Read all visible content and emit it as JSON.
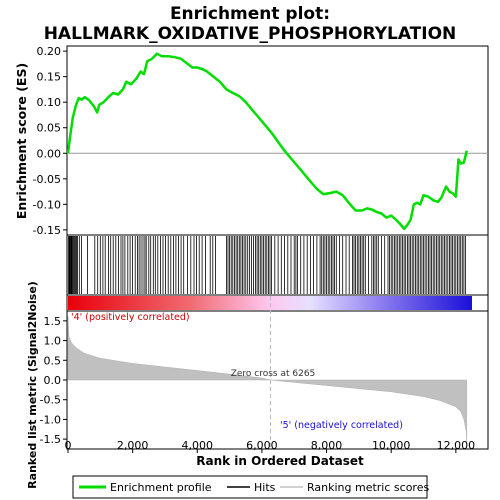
{
  "chart_data": {
    "type": "line",
    "title_line1": "Enrichment plot:",
    "title_line2": "HALLMARK_OXIDATIVE_PHOSPHORYLATION",
    "xlabel": "Rank in Ordered Dataset",
    "xlim": [
      0,
      12500
    ],
    "x_ticks": [
      0,
      2000,
      4000,
      6000,
      8000,
      10000,
      12000
    ],
    "x_tick_labels": [
      "0",
      "2,000",
      "4,000",
      "6,000",
      "8,000",
      "10,000",
      "12,000"
    ],
    "panels": {
      "es": {
        "ylabel": "Enrichment score (ES)",
        "ylim": [
          -0.16,
          0.21
        ],
        "y_ticks": [
          -0.15,
          -0.1,
          -0.05,
          0.0,
          0.05,
          0.1,
          0.15,
          0.2
        ],
        "y_tick_labels": [
          "-0.15",
          "-0.10",
          "-0.05",
          "0.00",
          "0.05",
          "0.10",
          "0.15",
          "0.20"
        ],
        "series_color": "#00dd00",
        "points": [
          [
            0,
            0.0
          ],
          [
            60,
            0.03
          ],
          [
            150,
            0.07
          ],
          [
            250,
            0.095
          ],
          [
            330,
            0.108
          ],
          [
            420,
            0.105
          ],
          [
            520,
            0.11
          ],
          [
            650,
            0.104
          ],
          [
            800,
            0.092
          ],
          [
            900,
            0.08
          ],
          [
            970,
            0.095
          ],
          [
            1100,
            0.1
          ],
          [
            1250,
            0.11
          ],
          [
            1400,
            0.118
          ],
          [
            1550,
            0.115
          ],
          [
            1700,
            0.125
          ],
          [
            1800,
            0.14
          ],
          [
            1950,
            0.135
          ],
          [
            2100,
            0.145
          ],
          [
            2250,
            0.16
          ],
          [
            2350,
            0.155
          ],
          [
            2450,
            0.18
          ],
          [
            2600,
            0.185
          ],
          [
            2750,
            0.195
          ],
          [
            2900,
            0.19
          ],
          [
            3100,
            0.19
          ],
          [
            3300,
            0.188
          ],
          [
            3500,
            0.185
          ],
          [
            3700,
            0.175
          ],
          [
            3850,
            0.168
          ],
          [
            4000,
            0.168
          ],
          [
            4150,
            0.165
          ],
          [
            4300,
            0.16
          ],
          [
            4500,
            0.15
          ],
          [
            4700,
            0.14
          ],
          [
            4900,
            0.125
          ],
          [
            5100,
            0.118
          ],
          [
            5300,
            0.112
          ],
          [
            5500,
            0.1
          ],
          [
            5700,
            0.085
          ],
          [
            5900,
            0.07
          ],
          [
            6100,
            0.055
          ],
          [
            6300,
            0.04
          ],
          [
            6500,
            0.022
          ],
          [
            6700,
            0.005
          ],
          [
            6900,
            -0.01
          ],
          [
            7100,
            -0.025
          ],
          [
            7300,
            -0.04
          ],
          [
            7500,
            -0.055
          ],
          [
            7700,
            -0.07
          ],
          [
            7900,
            -0.08
          ],
          [
            8100,
            -0.078
          ],
          [
            8300,
            -0.075
          ],
          [
            8500,
            -0.082
          ],
          [
            8700,
            -0.098
          ],
          [
            8900,
            -0.112
          ],
          [
            9100,
            -0.112
          ],
          [
            9250,
            -0.108
          ],
          [
            9400,
            -0.11
          ],
          [
            9550,
            -0.115
          ],
          [
            9700,
            -0.118
          ],
          [
            9850,
            -0.126
          ],
          [
            10000,
            -0.122
          ],
          [
            10150,
            -0.13
          ],
          [
            10300,
            -0.14
          ],
          [
            10400,
            -0.148
          ],
          [
            10500,
            -0.14
          ],
          [
            10600,
            -0.13
          ],
          [
            10700,
            -0.1
          ],
          [
            10800,
            -0.097
          ],
          [
            10900,
            -0.1
          ],
          [
            11000,
            -0.082
          ],
          [
            11150,
            -0.085
          ],
          [
            11300,
            -0.092
          ],
          [
            11450,
            -0.095
          ],
          [
            11550,
            -0.087
          ],
          [
            11700,
            -0.065
          ],
          [
            11800,
            -0.075
          ],
          [
            11900,
            -0.078
          ],
          [
            12000,
            -0.085
          ],
          [
            12050,
            -0.04
          ],
          [
            12080,
            -0.012
          ],
          [
            12150,
            -0.02
          ],
          [
            12250,
            -0.018
          ],
          [
            12300,
            -0.005
          ],
          [
            12340,
            0.005
          ]
        ]
      },
      "hits": {
        "positions": [
          20,
          40,
          60,
          80,
          100,
          120,
          140,
          170,
          200,
          230,
          260,
          290,
          350,
          420,
          600,
          830,
          920,
          1000,
          1080,
          1150,
          1250,
          1320,
          1400,
          1480,
          1560,
          1640,
          1700,
          1760,
          1850,
          1920,
          2000,
          2080,
          2150,
          2200,
          2260,
          2320,
          2380,
          2420,
          2500,
          2560,
          2640,
          2700,
          2780,
          2860,
          2940,
          3020,
          3100,
          3180,
          3260,
          3340,
          3420,
          3500,
          3580,
          3700,
          3800,
          3900,
          3980,
          4060,
          4150,
          4250,
          4400,
          4480,
          4560,
          4900,
          4950,
          5000,
          5050,
          5100,
          5150,
          5200,
          5250,
          5300,
          5350,
          5400,
          5450,
          5500,
          5560,
          5620,
          5680,
          5740,
          5800,
          5850,
          5900,
          5950,
          6000,
          6050,
          6100,
          6150,
          6200,
          6250,
          6300,
          6400,
          6500,
          6600,
          6700,
          6800,
          6900,
          7000,
          7050,
          7100,
          7200,
          7300,
          7400,
          7500,
          7600,
          7700,
          7800,
          7850,
          7900,
          7950,
          8000,
          8050,
          8100,
          8150,
          8200,
          8250,
          8300,
          8400,
          8500,
          8600,
          8700,
          8800,
          8850,
          8900,
          8950,
          9000,
          9050,
          9100,
          9150,
          9200,
          9300,
          9400,
          9450,
          9500,
          9550,
          9600,
          9700,
          9800,
          9900,
          9950,
          10000,
          10050,
          10100,
          10150,
          10200,
          10250,
          10300,
          10350,
          10400,
          10450,
          10500,
          10550,
          10600,
          10650,
          10700,
          10750,
          10800,
          10850,
          10900,
          10950,
          11000,
          11050,
          11100,
          11150,
          11200,
          11250,
          11300,
          11350,
          11400,
          11450,
          11500,
          11550,
          11600,
          11650,
          11700,
          11750,
          11800,
          11850,
          11900,
          11950,
          12000,
          12050,
          12100,
          12150,
          12200,
          12250,
          12300
        ]
      },
      "metric": {
        "ylabel": "Ranked list metric (Signal2Noise)",
        "ylim": [
          -1.75,
          1.75
        ],
        "y_ticks": [
          -1.5,
          -1.0,
          -0.5,
          0.0,
          0.5,
          1.0,
          1.5
        ],
        "y_tick_labels": [
          "-1.5",
          "-1.0",
          "-0.5",
          "0.0",
          "0.5",
          "1.0",
          "1.5"
        ],
        "fill_color": "#c0c0c0",
        "profile": [
          [
            0,
            1.62
          ],
          [
            30,
            1.1
          ],
          [
            100,
            0.95
          ],
          [
            250,
            0.82
          ],
          [
            500,
            0.68
          ],
          [
            1000,
            0.55
          ],
          [
            2000,
            0.42
          ],
          [
            3000,
            0.33
          ],
          [
            4000,
            0.24
          ],
          [
            5000,
            0.15
          ],
          [
            6000,
            0.05
          ],
          [
            6265,
            0.0
          ],
          [
            7000,
            -0.06
          ],
          [
            8000,
            -0.14
          ],
          [
            9000,
            -0.22
          ],
          [
            10000,
            -0.3
          ],
          [
            11000,
            -0.42
          ],
          [
            11500,
            -0.52
          ],
          [
            12000,
            -0.68
          ],
          [
            12150,
            -0.8
          ],
          [
            12250,
            -1.0
          ],
          [
            12320,
            -1.3
          ],
          [
            12340,
            -1.65
          ]
        ],
        "zero_cross_label": "Zero cross at 6265",
        "zero_cross_rank": 6265,
        "positive_label": "'4' (positively correlated)",
        "negative_label": "'5' (negatively correlated)"
      }
    },
    "legend": {
      "placement": "bottom",
      "entries": [
        {
          "label": "Enrichment profile",
          "color": "#00dd00",
          "kind": "line"
        },
        {
          "label": "Hits",
          "color": "#000000",
          "kind": "line"
        },
        {
          "label": "Ranking metric scores",
          "color": "#c0c0c0",
          "kind": "line"
        }
      ]
    },
    "colors": {
      "positive": "#e8000a",
      "neutral": "#ffd4ff",
      "negative": "#1a10d8",
      "axis": "#000000"
    }
  }
}
